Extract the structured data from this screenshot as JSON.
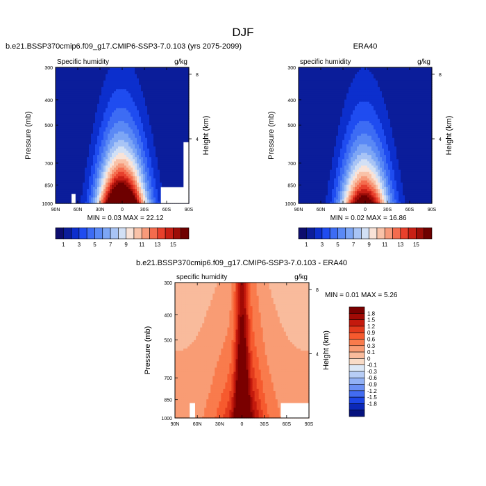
{
  "figure": {
    "title": "DJF"
  },
  "chart_data": [
    {
      "type": "heatmap",
      "title": "b.e21.BSSP370cmip6.f09_g17.CMIP6-SSP3-7.0.103 (yrs 2075-2099)",
      "left_string": "Specific humidity",
      "right_string": "g/kg",
      "ylabel": "Pressure (mb)",
      "y2label": "Height (km)",
      "x_ticks": [
        "90N",
        "60N",
        "30N",
        "0",
        "30S",
        "60S",
        "90S"
      ],
      "y_ticks": [
        "300",
        "400",
        "500",
        "700",
        "850",
        "1000"
      ],
      "y2_ticks": [
        "8",
        "4"
      ],
      "stats": {
        "min_label": "MIN =",
        "min": "0.03",
        "max_label": "MAX =",
        "max": "22.12"
      },
      "colorbar": {
        "orientation": "horizontal",
        "labels": [
          "1",
          "3",
          "5",
          "7",
          "9",
          "11",
          "13",
          "15"
        ]
      },
      "field": {
        "peak": 22.12,
        "base": 0.03
      },
      "colors": [
        "#0d0d6e",
        "#0b1d9a",
        "#0c2fcd",
        "#1f4cf0",
        "#3d6cf4",
        "#5a89f5",
        "#7da6f5",
        "#a8c4f5",
        "#d2e0f5",
        "#f9e3d8",
        "#f9c2a8",
        "#f79a7a",
        "#f46c4e",
        "#e8402c",
        "#c81f15",
        "#9d0d08",
        "#6e0000"
      ]
    },
    {
      "type": "heatmap",
      "title": "ERA40",
      "left_string": "specific humidity",
      "right_string": "g/kg",
      "ylabel": "Pressure (mb)",
      "y2label": "Height (km)",
      "x_ticks": [
        "90N",
        "60N",
        "30N",
        "0",
        "30S",
        "60S",
        "90S"
      ],
      "y_ticks": [
        "300",
        "400",
        "500",
        "700",
        "850",
        "1000"
      ],
      "y2_ticks": [
        "8",
        "4"
      ],
      "stats": {
        "min_label": "MIN =",
        "min": "0.02",
        "max_label": "MAX =",
        "max": "16.86"
      },
      "colorbar": {
        "orientation": "horizontal",
        "labels": [
          "1",
          "3",
          "5",
          "7",
          "9",
          "11",
          "13",
          "15"
        ]
      },
      "field": {
        "peak": 16.86,
        "base": 0.02
      },
      "colors": [
        "#0d0d6e",
        "#0b1d9a",
        "#0c2fcd",
        "#1f4cf0",
        "#3d6cf4",
        "#5a89f5",
        "#7da6f5",
        "#a8c4f5",
        "#d2e0f5",
        "#f9e3d8",
        "#f9c2a8",
        "#f79a7a",
        "#f46c4e",
        "#e8402c",
        "#c81f15",
        "#9d0d08",
        "#6e0000"
      ]
    },
    {
      "type": "heatmap",
      "title": "b.e21.BSSP370cmip6.f09_g17.CMIP6-SSP3-7.0.103 - ERA40",
      "left_string": "specific humidity",
      "right_string": "g/kg",
      "ylabel": "Pressure (mb)",
      "y2label": "Height (km)",
      "x_ticks": [
        "90N",
        "60N",
        "30N",
        "0",
        "30S",
        "60S",
        "90S"
      ],
      "y_ticks": [
        "300",
        "400",
        "500",
        "700",
        "850",
        "1000"
      ],
      "y2_ticks": [
        "8",
        "4"
      ],
      "stats": {
        "min_label": "MIN =",
        "min": "0.01",
        "max_label": "MAX =",
        "max": "5.26"
      },
      "colorbar": {
        "orientation": "vertical",
        "labels": [
          "1.8",
          "1.5",
          "1.2",
          "0.9",
          "0.6",
          "0.3",
          "0.1",
          "0",
          "-0.1",
          "-0.3",
          "-0.6",
          "-0.9",
          "-1.2",
          "-1.5",
          "-1.8"
        ]
      },
      "field": {
        "peak": 5.26,
        "base": 0.01
      },
      "colors": [
        "#7a0000",
        "#a10a05",
        "#c41a0d",
        "#e23a1c",
        "#f65a2e",
        "#f97b4c",
        "#f99c74",
        "#f9bb9c",
        "#f9dcc8",
        "#dce8f7",
        "#b7cdf6",
        "#92b1f5",
        "#6b90f4",
        "#426cf1",
        "#1d46e6",
        "#0b28b8",
        "#06127e"
      ]
    }
  ]
}
